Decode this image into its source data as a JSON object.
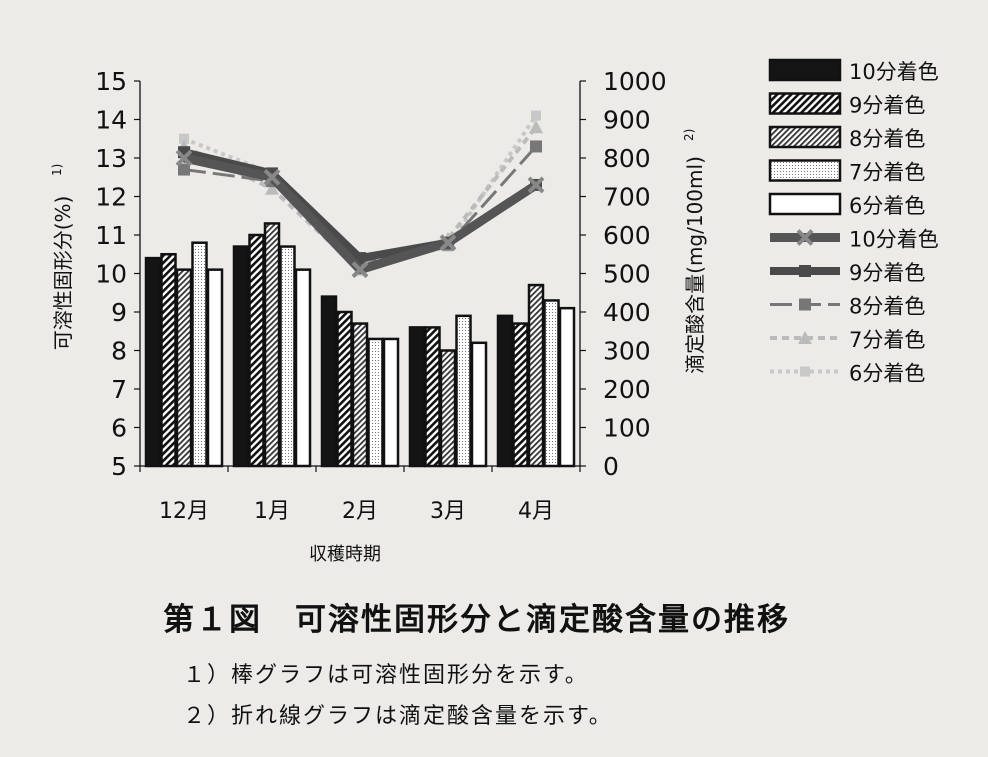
{
  "chart_data": {
    "type": "bar+line",
    "xlabel": "収穫時期",
    "categories": [
      "12月",
      "1月",
      "2月",
      "3月",
      "4月"
    ],
    "left_axis": {
      "label": "可溶性固形分(%)",
      "superscript": "1)",
      "range": [
        5,
        15
      ],
      "ticks": [
        "5",
        "6",
        "7",
        "8",
        "9",
        "10",
        "11",
        "12",
        "13",
        "14",
        "15"
      ]
    },
    "right_axis": {
      "label": "滴定酸含量(mg/100ml)",
      "superscript": "2)",
      "range": [
        0,
        1000
      ],
      "ticks": [
        "0",
        "100",
        "200",
        "300",
        "400",
        "500",
        "600",
        "700",
        "800",
        "900",
        "1000"
      ]
    },
    "bar_series": [
      {
        "name": "10分着色",
        "values": [
          10.4,
          10.7,
          9.4,
          8.6,
          8.9
        ]
      },
      {
        "name": "9分着色",
        "values": [
          10.5,
          11.0,
          9.0,
          8.6,
          8.7
        ]
      },
      {
        "name": "8分着色",
        "values": [
          10.1,
          11.3,
          8.7,
          8.0,
          9.7
        ]
      },
      {
        "name": "7分着色",
        "values": [
          10.8,
          10.7,
          8.3,
          8.9,
          9.3
        ]
      },
      {
        "name": "6分着色",
        "values": [
          10.1,
          10.1,
          8.3,
          8.2,
          9.1
        ]
      }
    ],
    "line_series": [
      {
        "name": "10分着色",
        "values": [
          800,
          750,
          510,
          580,
          730
        ]
      },
      {
        "name": "9分着色",
        "values": [
          815,
          760,
          540,
          580,
          730
        ]
      },
      {
        "name": "8分着色",
        "values": [
          770,
          740,
          530,
          575,
          830
        ]
      },
      {
        "name": "7分着色",
        "values": [
          830,
          720,
          510,
          590,
          880
        ]
      },
      {
        "name": "6分着色",
        "values": [
          850,
          760,
          515,
          570,
          910
        ]
      }
    ],
    "legend_position": "right",
    "grid": false
  },
  "figure_title": "第１図　可溶性固形分と滴定酸含量の推移",
  "notes": [
    "１）棒グラフは可溶性固形分を示す。",
    "２）折れ線グラフは滴定酸含量を示す。"
  ]
}
